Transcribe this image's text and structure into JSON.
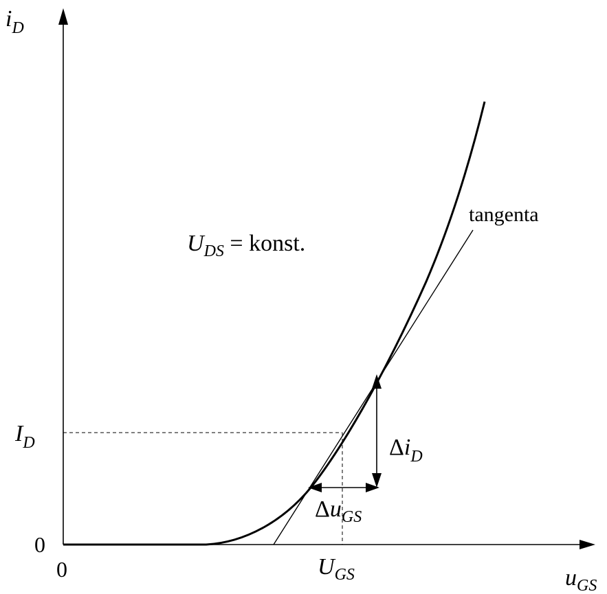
{
  "diagram": {
    "axes": {
      "y_axis_label": {
        "main": "i",
        "sub": "D"
      },
      "x_axis_label": {
        "main": "u",
        "sub": "GS"
      },
      "origin_y_label": "0",
      "origin_x_label": "0"
    },
    "operating_point": {
      "current_label": {
        "main": "I",
        "sub": "D"
      },
      "voltage_label": {
        "main": "U",
        "sub": "GS"
      }
    },
    "condition_label": {
      "main": "U",
      "sub": "DS",
      "rest": " = konst."
    },
    "tangent_label": "tangenta",
    "delta_current_label": {
      "delta": "Δ",
      "main": "i",
      "sub": "D"
    },
    "delta_voltage_label": {
      "delta": "Δ",
      "main": "u",
      "sub": "GS"
    }
  }
}
